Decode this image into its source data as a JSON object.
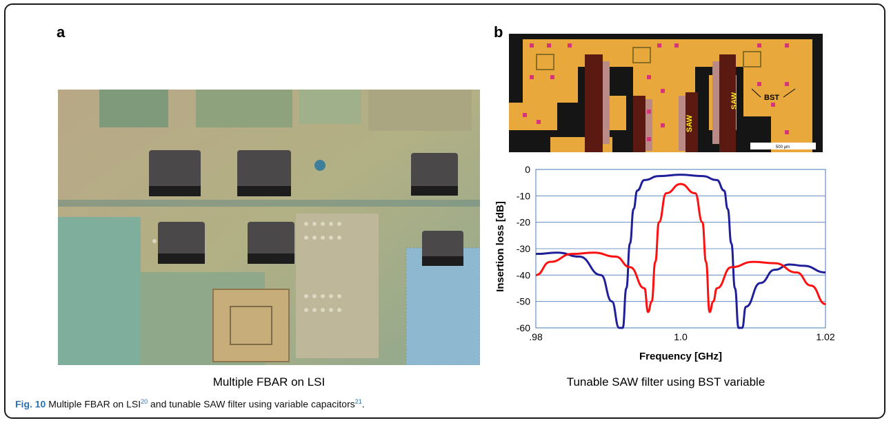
{
  "panel_a": {
    "letter": "a",
    "caption": "Multiple FBAR on LSI"
  },
  "panel_b": {
    "letter": "b",
    "caption": "Tunable SAW filter using BST variable",
    "photo_labels": [
      "SAW",
      "SAW",
      "BST"
    ],
    "scale_bar_label": "500 µm"
  },
  "figure_caption": {
    "label": "Fig. 10",
    "text_1": " Multiple FBAR on LSI",
    "ref_1": "20",
    "text_2": " and tunable SAW filter using variable capacitors",
    "ref_2": "21",
    "text_3": "."
  },
  "colors": {
    "series_blue": "#1f1f99",
    "series_red": "#ff1010",
    "grid": "#4a7ab8"
  },
  "chart_data": {
    "type": "line",
    "xlabel": "Frequency [GHz]",
    "ylabel": "Insertion loss [dB]",
    "xlim": [
      0.98,
      1.02
    ],
    "ylim": [
      -60,
      0
    ],
    "x_ticks": [
      ".98",
      "1.0",
      "1.02"
    ],
    "y_ticks": [
      "0",
      "-10",
      "-20",
      "-30",
      "-40",
      "-50",
      "-60"
    ],
    "y_tick_values": [
      0,
      -10,
      -20,
      -30,
      -40,
      -50,
      -60
    ],
    "x_tick_values": [
      0.98,
      1.0,
      1.02
    ],
    "grid": true,
    "series": [
      {
        "color": "blue",
        "x": [
          0.98,
          0.983,
          0.986,
          0.989,
          0.9905,
          0.9915,
          0.992,
          0.9925,
          0.993,
          0.9935,
          0.994,
          0.995,
          0.997,
          1.0,
          1.003,
          1.005,
          1.006,
          1.0065,
          1.007,
          1.0075,
          1.008,
          1.0085,
          1.009,
          1.011,
          1.013,
          1.015,
          1.017,
          1.02
        ],
        "y": [
          -32,
          -31.5,
          -33,
          -40,
          -50,
          -60,
          -60,
          -45,
          -28,
          -15,
          -8,
          -4,
          -2.5,
          -2,
          -2.5,
          -4,
          -8,
          -15,
          -28,
          -45,
          -60,
          -60,
          -52,
          -43,
          -38,
          -36,
          -36.5,
          -39
        ]
      },
      {
        "color": "red",
        "x": [
          0.98,
          0.982,
          0.985,
          0.988,
          0.991,
          0.993,
          0.995,
          0.9955,
          0.996,
          0.9965,
          0.997,
          0.998,
          1.0,
          1.002,
          1.003,
          1.0035,
          1.004,
          1.0045,
          1.005,
          1.007,
          1.01,
          1.013,
          1.016,
          1.018,
          1.02
        ],
        "y": [
          -40,
          -35,
          -32,
          -31.5,
          -33,
          -37,
          -45,
          -54,
          -50,
          -35,
          -20,
          -9,
          -5.5,
          -9,
          -20,
          -35,
          -54,
          -50,
          -45,
          -37,
          -35,
          -35.5,
          -39,
          -44,
          -51
        ]
      }
    ]
  }
}
